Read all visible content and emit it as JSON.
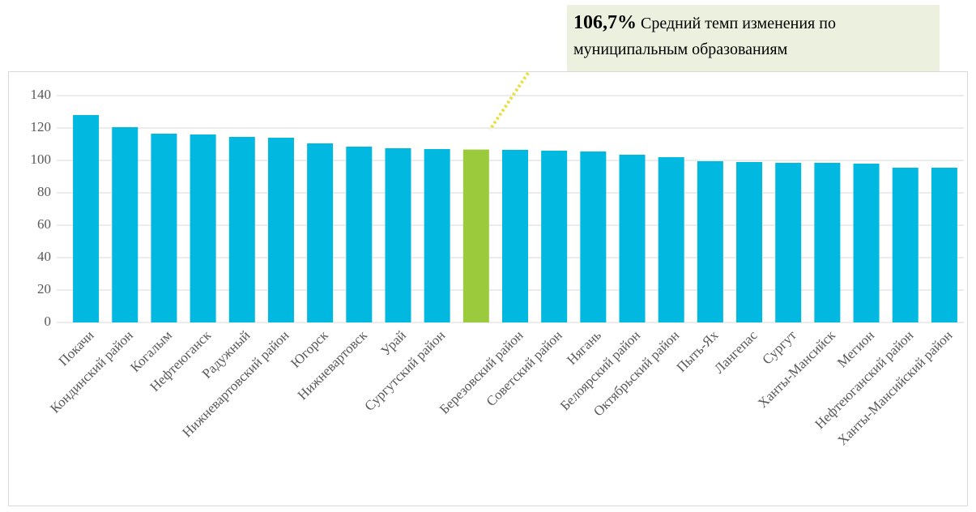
{
  "chart_data": {
    "type": "bar",
    "categories": [
      "Покачи",
      "Кондинский район",
      "Когалым",
      "Нефтеюганск",
      "Радужный",
      "Нижневартовский район",
      "Югорск",
      "Нижневартовск",
      "Урай",
      "Сургутский район",
      null,
      "Березовский район",
      "Советский район",
      "Нягань",
      "Белоярский район",
      "Октябрьский район",
      "Пыть-Ях",
      "Лангепас",
      "Сургут",
      "Ханты-Мансийск",
      "Мегион",
      "Нефтеюганский район",
      "Ханты-Мансийский район"
    ],
    "values": [
      128,
      120.5,
      116.5,
      116,
      114.5,
      114,
      110.5,
      108.5,
      107.5,
      107,
      106.7,
      106.5,
      106,
      105.5,
      103.5,
      102,
      99.5,
      99,
      98.5,
      98.5,
      98,
      95.5,
      95.5
    ],
    "colors": [
      "#00b8e0",
      "#00b8e0",
      "#00b8e0",
      "#00b8e0",
      "#00b8e0",
      "#00b8e0",
      "#00b8e0",
      "#00b8e0",
      "#00b8e0",
      "#00b8e0",
      "#9bcb3c",
      "#00b8e0",
      "#00b8e0",
      "#00b8e0",
      "#00b8e0",
      "#00b8e0",
      "#00b8e0",
      "#00b8e0",
      "#00b8e0",
      "#00b8e0",
      "#00b8e0",
      "#00b8e0",
      "#00b8e0"
    ],
    "ylim": [
      0,
      140
    ],
    "yticks": [
      0,
      20,
      40,
      60,
      80,
      100,
      120,
      140
    ],
    "grid": true,
    "annotation": {
      "highlight": "106,7%",
      "text": "Средний темп изменения по муниципальным образованиям"
    }
  }
}
